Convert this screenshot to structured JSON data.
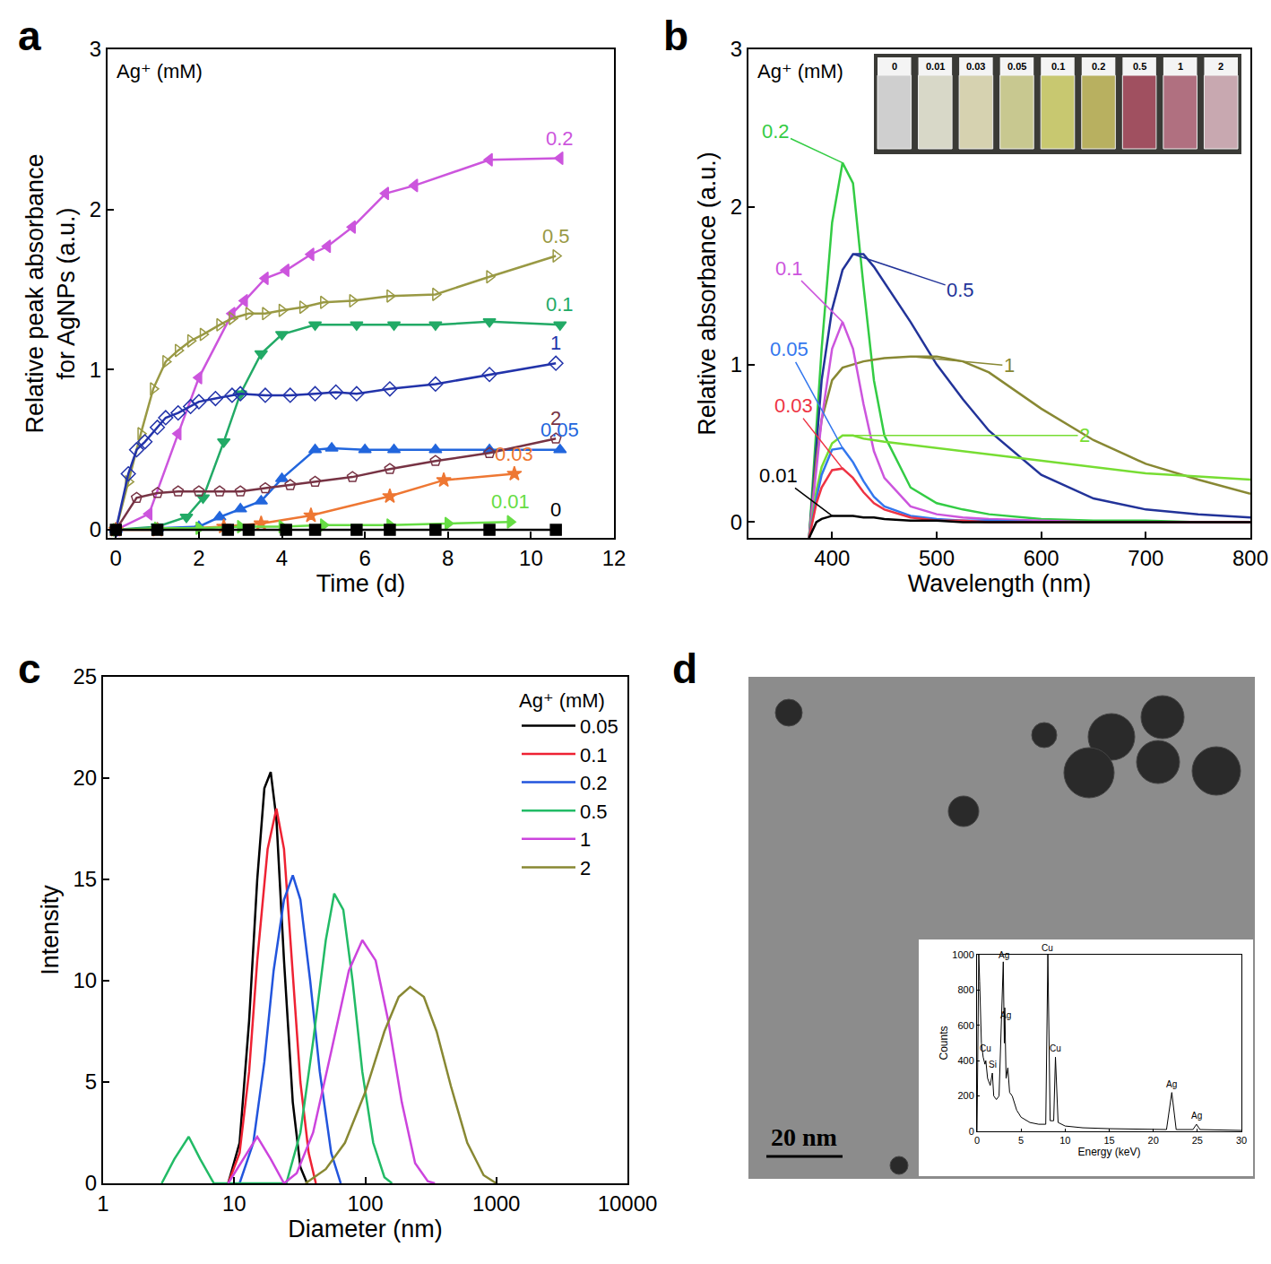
{
  "chart_data": [
    {
      "title": "a",
      "type": "line",
      "legend_title": "Ag⁺ (mM)",
      "xlabel": "Time (d)",
      "ylabel": "Relative peak absorbance\nfor AgNPs (a.u.)",
      "xlim": [
        -0.2,
        12
      ],
      "xticks": [
        0,
        2,
        4,
        6,
        8,
        10,
        12
      ],
      "ylim": [
        -0.05,
        3
      ],
      "yticks": [
        0,
        1,
        2,
        3
      ],
      "grid": false,
      "series": [
        {
          "name": "0.2",
          "color": "#cc55dd",
          "marker": "triangle-left",
          "x": [
            0,
            0.8,
            1.5,
            2,
            2.8,
            3.1,
            3.6,
            4.1,
            4.7,
            5.1,
            5.7,
            6.5,
            7.2,
            9,
            10.7
          ],
          "values": [
            0,
            0.1,
            0.6,
            0.95,
            1.35,
            1.43,
            1.57,
            1.62,
            1.72,
            1.77,
            1.89,
            2.1,
            2.15,
            2.31,
            2.32
          ]
        },
        {
          "name": "0.5",
          "color": "#999944",
          "marker": "triangle-right-open",
          "x": [
            0,
            0.3,
            0.6,
            0.9,
            1.2,
            1.5,
            1.8,
            2.1,
            2.5,
            2.8,
            3.2,
            3.6,
            4,
            4.5,
            5,
            5.7,
            6.6,
            7.7,
            9,
            10.6
          ],
          "values": [
            0,
            0.3,
            0.6,
            0.88,
            1.05,
            1.12,
            1.18,
            1.22,
            1.28,
            1.32,
            1.35,
            1.35,
            1.37,
            1.39,
            1.42,
            1.43,
            1.46,
            1.47,
            1.58,
            1.71
          ]
        },
        {
          "name": "0.1",
          "color": "#22aa66",
          "marker": "triangle-down",
          "x": [
            0,
            1,
            1.7,
            2.1,
            2.6,
            3,
            3.5,
            4,
            4.8,
            5.8,
            6.7,
            7.7,
            9,
            10.7
          ],
          "values": [
            0,
            0.02,
            0.08,
            0.2,
            0.55,
            0.85,
            1.1,
            1.22,
            1.28,
            1.28,
            1.28,
            1.28,
            1.3,
            1.28
          ]
        },
        {
          "name": "1",
          "color": "#2233aa",
          "marker": "diamond-open",
          "x": [
            0,
            0.3,
            0.5,
            0.7,
            1,
            1.2,
            1.5,
            1.8,
            2,
            2.4,
            2.8,
            3,
            3.6,
            4.2,
            4.8,
            5.3,
            5.8,
            6.6,
            7.7,
            9,
            10.6
          ],
          "values": [
            0,
            0.35,
            0.5,
            0.55,
            0.64,
            0.7,
            0.73,
            0.77,
            0.8,
            0.82,
            0.84,
            0.85,
            0.84,
            0.84,
            0.85,
            0.86,
            0.85,
            0.88,
            0.91,
            0.97,
            1.04
          ]
        },
        {
          "name": "0.05",
          "color": "#2266dd",
          "marker": "triangle-up",
          "x": [
            0,
            1,
            2,
            2.5,
            3,
            3.5,
            4,
            4.8,
            5.2,
            6,
            6.7,
            7.7,
            9,
            10.7
          ],
          "values": [
            0,
            0.01,
            0.02,
            0.08,
            0.13,
            0.18,
            0.32,
            0.5,
            0.51,
            0.5,
            0.5,
            0.5,
            0.5,
            0.5
          ]
        },
        {
          "name": "2",
          "color": "#773344",
          "marker": "pentagon-open",
          "x": [
            0,
            0.5,
            1,
            1.5,
            2,
            2.5,
            3,
            3.6,
            4.2,
            4.8,
            5.7,
            6.6,
            7.7,
            9,
            10.6
          ],
          "values": [
            0,
            0.2,
            0.23,
            0.24,
            0.24,
            0.24,
            0.24,
            0.26,
            0.28,
            0.3,
            0.33,
            0.38,
            0.43,
            0.48,
            0.57
          ]
        },
        {
          "name": "0.03",
          "color": "#ee7733",
          "marker": "star",
          "x": [
            0,
            1,
            2.6,
            3.5,
            4.7,
            6.6,
            7.9,
            9.6
          ],
          "values": [
            0,
            0,
            0.02,
            0.04,
            0.09,
            0.21,
            0.31,
            0.35
          ]
        },
        {
          "name": "0.01",
          "color": "#66dd44",
          "marker": "triangle-right",
          "x": [
            0,
            1,
            2,
            3,
            4,
            5,
            6.6,
            8,
            9.5
          ],
          "values": [
            0,
            0.01,
            0.01,
            0.02,
            0.02,
            0.03,
            0.03,
            0.04,
            0.05
          ]
        },
        {
          "name": "0",
          "color": "#000000",
          "marker": "square",
          "x": [
            0,
            1,
            2.7,
            3.2,
            4.1,
            4.8,
            5.8,
            6.6,
            7.7,
            9,
            10.6
          ],
          "values": [
            0,
            0,
            0,
            0,
            0,
            0,
            0,
            0,
            0,
            0,
            0
          ]
        }
      ]
    },
    {
      "title": "b",
      "type": "line",
      "legend_title": "Ag⁺ (mM)",
      "xlabel": "Wavelength (nm)",
      "ylabel": "Relative absorbance (a.u.)",
      "xlim": [
        320,
        800
      ],
      "xticks": [
        400,
        500,
        600,
        700,
        800
      ],
      "ylim": [
        -0.1,
        3
      ],
      "yticks": [
        0,
        1,
        2,
        3
      ],
      "grid": false,
      "x": [
        378,
        385,
        390,
        400,
        410,
        420,
        430,
        440,
        450,
        475,
        500,
        525,
        550,
        600,
        650,
        700,
        750,
        800
      ],
      "series": [
        {
          "name": "0.2",
          "color": "#33cc44",
          "values": [
            -0.1,
            0.6,
            1.1,
            1.9,
            2.28,
            2.15,
            1.5,
            0.9,
            0.55,
            0.22,
            0.12,
            0.08,
            0.05,
            0.02,
            0.01,
            0.01,
            0,
            0
          ]
        },
        {
          "name": "0.5",
          "color": "#223399",
          "values": [
            -0.1,
            0.5,
            0.9,
            1.35,
            1.6,
            1.7,
            1.7,
            1.62,
            1.52,
            1.27,
            1.0,
            0.78,
            0.58,
            0.3,
            0.15,
            0.08,
            0.05,
            0.03
          ]
        },
        {
          "name": "1",
          "color": "#888833",
          "values": [
            -0.1,
            0.4,
            0.65,
            0.9,
            0.98,
            1.0,
            1.02,
            1.03,
            1.04,
            1.05,
            1.05,
            1.02,
            0.95,
            0.72,
            0.52,
            0.37,
            0.27,
            0.18
          ]
        },
        {
          "name": "0.1",
          "color": "#cc55dd",
          "values": [
            -0.1,
            0.35,
            0.65,
            1.1,
            1.27,
            1.1,
            0.75,
            0.45,
            0.28,
            0.1,
            0.05,
            0.03,
            0.02,
            0.01,
            0,
            0,
            0,
            0
          ]
        },
        {
          "name": "2",
          "color": "#77dd33",
          "values": [
            -0.1,
            0.2,
            0.35,
            0.5,
            0.55,
            0.55,
            0.53,
            0.52,
            0.51,
            0.49,
            0.47,
            0.45,
            0.43,
            0.39,
            0.35,
            0.31,
            0.29,
            0.27
          ]
        },
        {
          "name": "0.05",
          "color": "#3377ee",
          "values": [
            -0.1,
            0.15,
            0.3,
            0.46,
            0.47,
            0.38,
            0.26,
            0.16,
            0.1,
            0.04,
            0.02,
            0.01,
            0.01,
            0,
            0,
            0,
            0,
            0
          ]
        },
        {
          "name": "0.03",
          "color": "#ee3344",
          "values": [
            -0.1,
            0.12,
            0.22,
            0.33,
            0.34,
            0.28,
            0.19,
            0.12,
            0.08,
            0.03,
            0.01,
            0.01,
            0,
            0,
            0,
            0,
            0,
            0
          ]
        },
        {
          "name": "0.01",
          "color": "#000000",
          "values": [
            -0.1,
            0.0,
            0.02,
            0.04,
            0.04,
            0.04,
            0.03,
            0.03,
            0.02,
            0.01,
            0.01,
            0,
            0,
            0,
            0,
            0,
            0,
            0
          ]
        }
      ],
      "inset": {
        "labels": [
          "0",
          "0.01",
          "0.03",
          "0.05",
          "0.1",
          "0.2",
          "0.5",
          "1",
          "2"
        ],
        "colors": [
          "#cfcfcf",
          "#d8d8c8",
          "#d6d2b0",
          "#c8c890",
          "#c8c870",
          "#b8b060",
          "#a05060",
          "#b07080",
          "#c8a8b0"
        ]
      }
    },
    {
      "title": "c",
      "type": "line",
      "legend_title": "Ag⁺ (mM)",
      "legend": "top right",
      "xlabel": "Diameter (nm)",
      "ylabel": "Intensity",
      "log": "x",
      "xlim": [
        1,
        10000
      ],
      "xticks": [
        1,
        10,
        100,
        1000,
        10000
      ],
      "ylim": [
        0,
        25
      ],
      "yticks": [
        0,
        5,
        10,
        15,
        20,
        25
      ],
      "grid": false,
      "series": [
        {
          "name": "0.05",
          "color": "#000000",
          "x": [
            9,
            11,
            13,
            15,
            17,
            19,
            21,
            24,
            28,
            32,
            36
          ],
          "values": [
            0,
            2,
            8,
            15,
            19.5,
            20.3,
            18,
            11,
            4,
            0.8,
            0
          ]
        },
        {
          "name": "0.1",
          "color": "#ee2233",
          "x": [
            9,
            11,
            13,
            15,
            18,
            21,
            24,
            28,
            32,
            37,
            42
          ],
          "values": [
            0,
            1.5,
            5.5,
            11,
            16.5,
            18.5,
            16.5,
            10.5,
            5,
            1.5,
            0
          ]
        },
        {
          "name": "0.2",
          "color": "#2255dd",
          "x": [
            11,
            14,
            17,
            20,
            24,
            28,
            32,
            38,
            45,
            55,
            65
          ],
          "values": [
            0,
            2,
            6,
            10.5,
            14,
            15.2,
            14,
            10,
            5.5,
            1.5,
            0
          ]
        },
        {
          "name": "0.5",
          "color": "#22bb66",
          "x": [
            2.8,
            3.5,
            4.5,
            5.5,
            7,
            25,
            32,
            40,
            50,
            58,
            68,
            80,
            95,
            115,
            140,
            160
          ],
          "values": [
            0,
            1.2,
            2.3,
            1.2,
            0,
            0,
            2.5,
            7,
            12,
            14.3,
            13.5,
            10,
            5.5,
            2,
            0.3,
            0
          ]
        },
        {
          "name": "1",
          "color": "#cc44dd",
          "x": [
            9,
            12,
            15,
            19,
            24,
            30,
            40,
            55,
            75,
            95,
            120,
            150,
            190,
            240,
            300,
            340
          ],
          "values": [
            0,
            1.3,
            2.3,
            1.2,
            0,
            0.5,
            2.5,
            6.5,
            10.5,
            12,
            11,
            8,
            4,
            1,
            0.1,
            0
          ]
        },
        {
          "name": "2",
          "color": "#888833",
          "x": [
            35,
            50,
            70,
            100,
            140,
            180,
            220,
            280,
            350,
            450,
            600,
            800,
            1000
          ],
          "values": [
            0,
            0.7,
            2,
            4.5,
            7.5,
            9.2,
            9.7,
            9.2,
            7.5,
            4.8,
            2,
            0.4,
            0
          ]
        }
      ]
    },
    {
      "title": "d",
      "type": "line",
      "scale_bar": "20 nm",
      "xlabel": "Energy (keV)",
      "ylabel": "Counts",
      "xlim": [
        0,
        30
      ],
      "xticks": [
        0,
        5,
        10,
        15,
        20,
        25,
        30
      ],
      "ylim": [
        0,
        1000
      ],
      "yticks": [
        0,
        200,
        400,
        600,
        800,
        1000
      ],
      "grid": false,
      "series": [
        {
          "color": "#000000",
          "x": [
            0,
            0.2,
            0.3,
            0.5,
            0.7,
            0.9,
            1.0,
            1.2,
            1.5,
            1.74,
            1.9,
            2.2,
            2.5,
            2.98,
            3.1,
            3.15,
            3.3,
            3.5,
            3.7,
            4.0,
            4.5,
            5,
            6,
            7,
            7.8,
            8.04,
            8.3,
            8.7,
            8.9,
            9.2,
            10,
            12,
            15,
            20,
            21.5,
            22.1,
            22.6,
            24.5,
            24.9,
            25.3,
            28,
            30
          ],
          "values": [
            0,
            1000,
            850,
            500,
            420,
            380,
            400,
            300,
            260,
            330,
            200,
            180,
            200,
            960,
            500,
            700,
            300,
            360,
            220,
            200,
            120,
            80,
            50,
            40,
            40,
            1000,
            60,
            60,
            420,
            50,
            30,
            20,
            15,
            10,
            10,
            220,
            10,
            10,
            40,
            10,
            5,
            5
          ]
        }
      ],
      "peak_labels": [
        {
          "text": "Ag",
          "x": 3.0,
          "y": 960
        },
        {
          "text": "Ag",
          "x": 3.3,
          "y": 620
        },
        {
          "text": "Cu",
          "x": 1.0,
          "y": 430
        },
        {
          "text": "Si",
          "x": 1.8,
          "y": 340
        },
        {
          "text": "Cu",
          "x": 8.0,
          "y": 1000
        },
        {
          "text": "Cu",
          "x": 8.9,
          "y": 430
        },
        {
          "text": "Ag",
          "x": 22.1,
          "y": 230
        },
        {
          "text": "Ag",
          "x": 24.9,
          "y": 50
        }
      ]
    }
  ]
}
